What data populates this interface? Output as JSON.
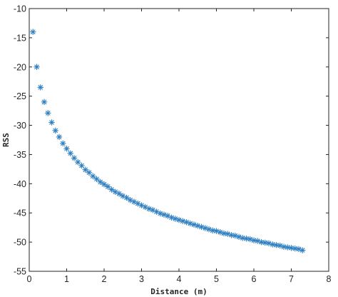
{
  "chart_data": {
    "type": "scatter",
    "title": "",
    "xlabel": "Distance (m)",
    "ylabel": "RSS",
    "xlim": [
      0,
      8
    ],
    "ylim": [
      -55,
      -10
    ],
    "xticks": [
      0,
      1,
      2,
      3,
      4,
      5,
      6,
      7,
      8
    ],
    "yticks": [
      -10,
      -15,
      -20,
      -25,
      -30,
      -35,
      -40,
      -45,
      -50,
      -55
    ],
    "grid": false,
    "legend": "none",
    "marker": "asterisk",
    "marker_color": "#2f7fc1",
    "series": [
      {
        "x": [
          0.1,
          0.2,
          0.3,
          0.4,
          0.5,
          0.6,
          0.7,
          0.8,
          0.9,
          1.0,
          1.1,
          1.2,
          1.3,
          1.4,
          1.5,
          1.6,
          1.7,
          1.8,
          1.9,
          2.0,
          2.1,
          2.2,
          2.3,
          2.4,
          2.5,
          2.6,
          2.7,
          2.8,
          2.9,
          3.0,
          3.1,
          3.2,
          3.3,
          3.4,
          3.5,
          3.6,
          3.7,
          3.8,
          3.9,
          4.0,
          4.1,
          4.2,
          4.3,
          4.4,
          4.5,
          4.6,
          4.7,
          4.8,
          4.9,
          5.0,
          5.1,
          5.2,
          5.3,
          5.4,
          5.5,
          5.6,
          5.7,
          5.8,
          5.9,
          6.0,
          6.1,
          6.2,
          6.3,
          6.4,
          6.5,
          6.6,
          6.7,
          6.8,
          6.9,
          7.0,
          7.1,
          7.2,
          7.3
        ],
        "values": [
          -14.0,
          -20.0,
          -23.5,
          -26.0,
          -27.9,
          -29.5,
          -30.9,
          -32.0,
          -33.1,
          -34.0,
          -34.8,
          -35.6,
          -36.3,
          -36.9,
          -37.6,
          -38.1,
          -38.7,
          -39.2,
          -39.7,
          -40.1,
          -40.5,
          -41.0,
          -41.4,
          -41.7,
          -42.1,
          -42.4,
          -42.8,
          -43.1,
          -43.4,
          -43.7,
          -44.0,
          -44.3,
          -44.5,
          -44.8,
          -45.1,
          -45.3,
          -45.5,
          -45.8,
          -46.0,
          -46.2,
          -46.4,
          -46.6,
          -46.8,
          -47.0,
          -47.2,
          -47.4,
          -47.6,
          -47.8,
          -48.0,
          -48.1,
          -48.3,
          -48.5,
          -48.6,
          -48.8,
          -48.9,
          -49.1,
          -49.3,
          -49.4,
          -49.5,
          -49.7,
          -49.8,
          -50.0,
          -50.1,
          -50.2,
          -50.4,
          -50.5,
          -50.6,
          -50.8,
          -50.9,
          -51.0,
          -51.1,
          -51.2,
          -51.4
        ]
      }
    ]
  }
}
